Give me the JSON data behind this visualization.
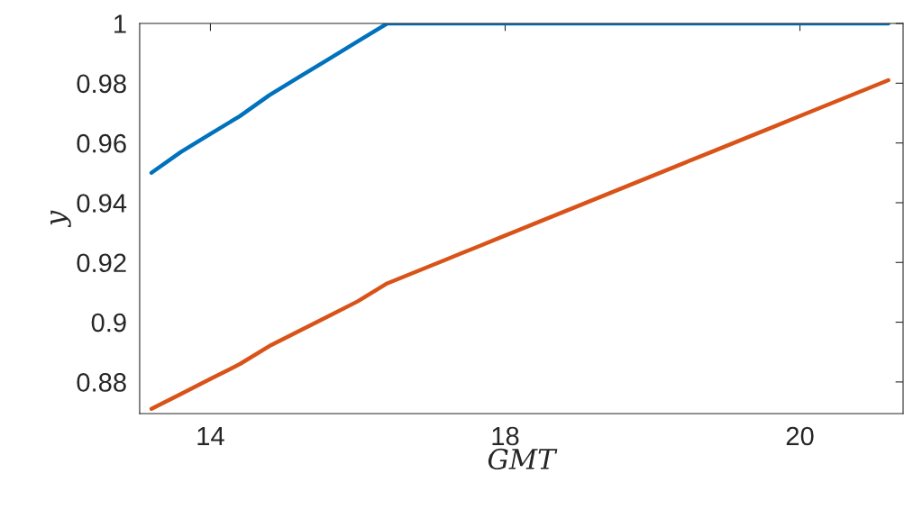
{
  "chart_data": {
    "type": "line",
    "xlabel": "GMT",
    "ylabel": "y",
    "categories": [
      null,
      null,
      "14",
      null,
      null,
      null,
      null,
      null,
      null,
      null,
      null,
      null,
      "18",
      null,
      null,
      null,
      null,
      null,
      null,
      null,
      null,
      null,
      "20",
      null,
      null,
      null
    ],
    "series": [
      {
        "color": "#0072bd",
        "values": [
          0.95,
          0.957,
          0.963,
          0.969,
          0.976,
          0.982,
          0.988,
          0.994,
          1.0,
          1.0,
          1.0,
          1.0,
          1.0,
          1.0,
          1.0,
          1.0,
          1.0,
          1.0,
          1.0,
          1.0,
          1.0,
          1.0,
          1.0,
          1.0,
          1.0,
          1.0
        ]
      },
      {
        "color": "#d95319",
        "values": [
          0.871,
          0.876,
          0.881,
          0.886,
          0.892,
          0.897,
          0.902,
          0.907,
          0.913,
          0.917,
          0.921,
          0.925,
          0.929,
          0.933,
          0.937,
          0.941,
          0.945,
          0.949,
          0.953,
          0.957,
          0.961,
          0.965,
          0.969,
          0.973,
          0.977,
          0.981
        ]
      }
    ],
    "ylim": [
      0.8694,
      1
    ],
    "yticks": [
      0.88,
      0.9,
      0.92,
      0.94,
      0.96,
      0.98,
      1
    ],
    "grid": false,
    "legend": false,
    "marker": "none",
    "line_style": "solid"
  }
}
